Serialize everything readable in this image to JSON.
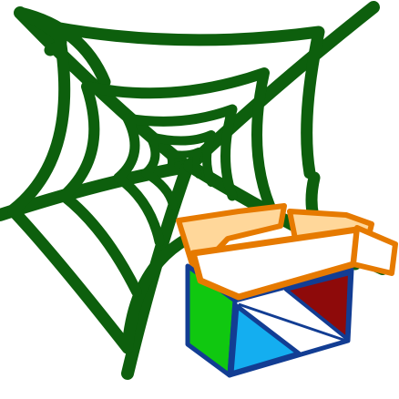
{
  "icon": {
    "name": "web-package-icon",
    "colors": {
      "web": "#0d5f0d",
      "box_outline": "#e67a00",
      "box_flap_light": "#ffd79a",
      "box_front": "#ffffff",
      "box_side_green": "#10c810",
      "box_blue": "#14aef0",
      "box_red": "#8e0a0a",
      "box_edge": "#123d93"
    }
  }
}
